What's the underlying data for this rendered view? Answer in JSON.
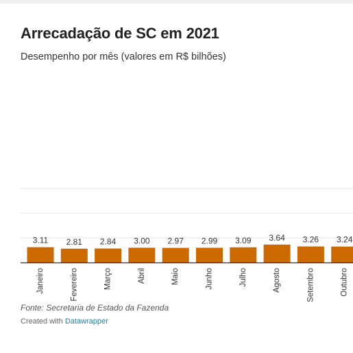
{
  "header": {
    "title": "Arrecadação de SC em 2021",
    "subtitle": "Desempenho por mês (valores em R$ bilhões)"
  },
  "footer": {
    "source": "Fonte: Secretaria de Estado da Fazenda",
    "credit_prefix": "Created with",
    "credit_brand": "Datawrapper"
  },
  "colors": {
    "bar": "#cc6a00",
    "grid": "#e6e6e6",
    "axis": "#333333"
  },
  "chart_data": {
    "type": "bar",
    "categories": [
      "Janeiro",
      "Fevereiro",
      "Março",
      "Abril",
      "Maio",
      "Junho",
      "Julho",
      "Agosto",
      "Setembro",
      "Outubro"
    ],
    "values": [
      3.11,
      2.81,
      2.84,
      3.0,
      2.97,
      2.99,
      3.09,
      3.64,
      3.26,
      3.24
    ],
    "value_labels": [
      "3.11",
      "2.81",
      "2.84",
      "3.00",
      "2.97",
      "2.99",
      "3.09",
      "3.64",
      "3.26",
      "3.24"
    ],
    "title": "Arrecadação de SC em 2021",
    "subtitle": "Desempenho por mês (valores em R$ bilhões)",
    "xlabel": "",
    "ylabel": "",
    "ylim": [
      0,
      15
    ],
    "grid": true,
    "legend": "none"
  }
}
